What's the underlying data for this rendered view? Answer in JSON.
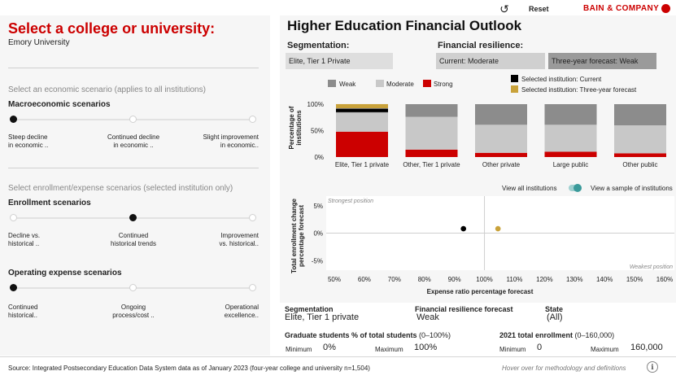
{
  "topbar": {
    "reset_label": "Reset",
    "reset_icon": "refresh-icon",
    "brand": "BAIN & COMPANY",
    "brand_color": "#cc0000"
  },
  "left": {
    "title": "Select a college or university:",
    "institution": "Emory University",
    "econ_prompt": "Select an economic scenario (applies to all institutions)",
    "macro": {
      "heading": "Macroeconomic scenarios",
      "selected_index": 0,
      "options": [
        {
          "line1": "Steep decline",
          "line2": "in economic .."
        },
        {
          "line1": "Continued decline",
          "line2": "in economic .."
        },
        {
          "line1": "Slight improvement",
          "line2": "in economic.."
        }
      ]
    },
    "enroll_prompt": "Select enrollment/expense scenarios (selected institution only)",
    "enrollment": {
      "heading": "Enrollment scenarios",
      "selected_index": 1,
      "options": [
        {
          "line1": "Decline vs.",
          "line2": "historical .."
        },
        {
          "line1": "Continued",
          "line2": "historical trends"
        },
        {
          "line1": "Improvement",
          "line2": "vs. historical.."
        }
      ]
    },
    "expense": {
      "heading": "Operating expense scenarios",
      "selected_index": 0,
      "options": [
        {
          "line1": "Continued",
          "line2": "historical.."
        },
        {
          "line1": "Ongoing",
          "line2": "process/cost .."
        },
        {
          "line1": "Operational",
          "line2": "excellence.."
        }
      ]
    }
  },
  "right": {
    "title": "Higher Education Financial Outlook",
    "segmentation_label": "Segmentation:",
    "segmentation_value": "Elite, Tier 1 Private",
    "resilience_label": "Financial resilience:",
    "current": "Current: Moderate",
    "forecast": "Three-year forecast: Weak"
  },
  "legend": {
    "weak": "Weak",
    "moderate": "Moderate",
    "strong": "Strong",
    "selected_current": "Selected institution: Current",
    "selected_forecast": "Selected institution: Three-year forecast"
  },
  "colors": {
    "weak": "#8c8c8c",
    "moderate": "#c8c8c8",
    "strong": "#cc0000",
    "current_marker": "#000000",
    "forecast_marker": "#c9a23a",
    "toggle": "#3a9a9a"
  },
  "toggle": {
    "left_label": "View all institutions",
    "right_label": "View a sample of institutions"
  },
  "chart_data": [
    {
      "type": "bar",
      "stacked": true,
      "title": "",
      "ylabel_line1": "Percentage of",
      "ylabel_line2": "institutions",
      "ylim": [
        0,
        100
      ],
      "yticks": [
        {
          "value": 0,
          "label": "0%"
        },
        {
          "value": 50,
          "label": "50%"
        },
        {
          "value": 100,
          "label": "100%"
        }
      ],
      "categories": [
        "Elite, Tier 1 private",
        "Other, Tier 1 private",
        "Other private",
        "Large public",
        "Other public"
      ],
      "series": [
        {
          "name": "Strong",
          "key": "strong",
          "values": [
            48,
            14,
            8,
            10,
            7
          ]
        },
        {
          "name": "Moderate",
          "key": "moderate",
          "values": [
            36,
            62,
            53,
            51,
            53
          ]
        },
        {
          "name": "Weak",
          "key": "weak",
          "values": [
            16,
            24,
            39,
            39,
            40
          ]
        }
      ],
      "selected_markers": {
        "current": 88,
        "forecast": 97
      }
    },
    {
      "type": "scatter",
      "xlabel": "Expense ratio percentage forecast",
      "ylabel_line1": "Total enrollment change",
      "ylabel_line2": "percentage forecast",
      "xlim": [
        50,
        160
      ],
      "ylim": [
        -6,
        6
      ],
      "xticks": [
        {
          "value": 50,
          "label": "50%"
        },
        {
          "value": 60,
          "label": "60%"
        },
        {
          "value": 70,
          "label": "70%"
        },
        {
          "value": 80,
          "label": "80%"
        },
        {
          "value": 90,
          "label": "90%"
        },
        {
          "value": 100,
          "label": "100%"
        },
        {
          "value": 110,
          "label": "110%"
        },
        {
          "value": 120,
          "label": "120%"
        },
        {
          "value": 130,
          "label": "130%"
        },
        {
          "value": 140,
          "label": "140%"
        },
        {
          "value": 150,
          "label": "150%"
        },
        {
          "value": 160,
          "label": "160%"
        }
      ],
      "yticks": [
        {
          "value": 5,
          "label": "5%"
        },
        {
          "value": 0,
          "label": "0%"
        },
        {
          "value": -5,
          "label": "-5%"
        }
      ],
      "reference_x": 100,
      "reference_y": 0,
      "annotations": {
        "strongest": "Strongest position",
        "weakest": "Weakest position"
      },
      "points": [
        {
          "name": "current",
          "x": 93,
          "y": 0.8
        },
        {
          "name": "forecast",
          "x": 104.5,
          "y": 0.8
        }
      ]
    }
  ],
  "info": {
    "seg_h": "Segmentation",
    "seg_v": "Elite, Tier 1 private",
    "res_h": "Financial resilience forecast",
    "res_v": "Weak",
    "state_h": "State",
    "state_v": "(All)",
    "grad_h": "Graduate students % of total students",
    "grad_range": "(0–100%)",
    "grad_min_label": "Minimum",
    "grad_min": "0%",
    "grad_max_label": "Maximum",
    "grad_max": "100%",
    "enroll_h": "2021 total enrollment",
    "enroll_range": "(0–160,000)",
    "enroll_min_label": "Minimum",
    "enroll_min": "0",
    "enroll_max_label": "Maximum",
    "enroll_max": "160,000"
  },
  "footer": {
    "source": "Source: Integrated Postsecondary Education Data System data as of January 2023 (four-year college and university n=1,504)",
    "hover_note": "Hover over for methodology and definitions"
  }
}
